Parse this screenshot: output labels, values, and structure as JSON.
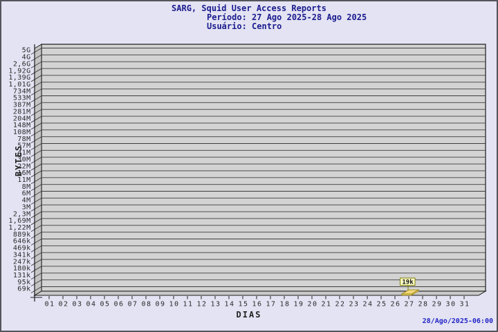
{
  "header": {
    "title": "SARG, Squid User Access Reports",
    "period": "Período: 27 Ago 2025-28 Ago 2025",
    "user": "Usuário: Centro"
  },
  "footer": {
    "generated": "28/Ago/2025-06:00"
  },
  "colors": {
    "background": "#e3e3f3",
    "page_border": "#54545c",
    "title_text": "#1b1b8e",
    "plot_bg": "#d3d3d3",
    "wall_bg": "#c4c4c4",
    "floor_bg": "#c9c9c9",
    "frame": "#1c1c1c",
    "gridline": "#3d3d3d",
    "tick_text": "#2a2a2a",
    "bar_fill": "#f2d87a",
    "bar_edge": "#97830f",
    "annotation_bg": "#ffffc8",
    "annotation_border": "#7f7f00",
    "annotation_text": "#111111",
    "timestamp_text": "#2323c8"
  },
  "chart_data": {
    "type": "bar",
    "style": "3d-bar",
    "title": "SARG, Squid User Access Reports",
    "subtitle": [
      "Período: 27 Ago 2025-28 Ago 2025",
      "Usuário: Centro"
    ],
    "xlabel": "DIAS",
    "ylabel": "BYTES",
    "y_scale": "log",
    "grid": true,
    "x_categories": [
      "01",
      "02",
      "03",
      "04",
      "05",
      "06",
      "07",
      "08",
      "09",
      "10",
      "11",
      "12",
      "13",
      "14",
      "15",
      "16",
      "17",
      "18",
      "19",
      "20",
      "21",
      "22",
      "23",
      "24",
      "25",
      "26",
      "27",
      "28",
      "29",
      "30",
      "31"
    ],
    "y_tick_labels": [
      "5G",
      "4G",
      "2,6G",
      "1,92G",
      "1,39G",
      "1,01G",
      "734M",
      "533M",
      "387M",
      "281M",
      "204M",
      "148M",
      "108M",
      "78M",
      "57M",
      "41M",
      "30M",
      "22M",
      "16M",
      "11M",
      "8M",
      "6M",
      "4M",
      "3M",
      "2,3M",
      "1,69M",
      "1,22M",
      "889k",
      "646k",
      "469k",
      "341k",
      "247k",
      "180k",
      "131k",
      "95k",
      "69k"
    ],
    "series": [
      {
        "name": "Centro",
        "unit": "bytes",
        "points": [
          {
            "x": "27",
            "label": "19k",
            "value": 19000
          }
        ]
      }
    ],
    "annotations": [
      {
        "x": "27",
        "label": "19k"
      }
    ]
  }
}
